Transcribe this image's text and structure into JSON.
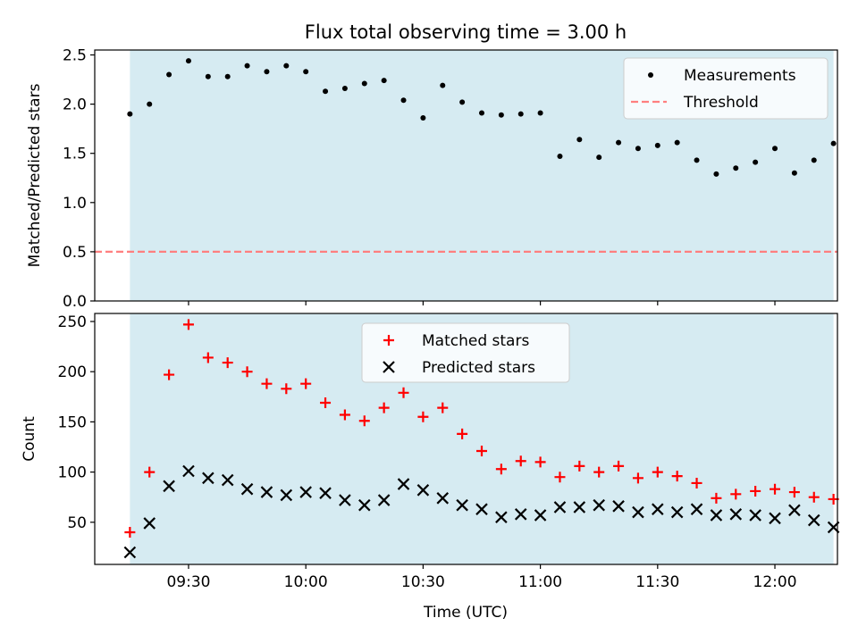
{
  "chart_data": {
    "type": "scatter",
    "title": "Flux total observing time = 3.00 h",
    "xlabel": "Time (UTC)",
    "x_tick_labels": [
      "09:30",
      "10:00",
      "10:30",
      "11:00",
      "11:30",
      "12:00"
    ],
    "x_ticks_minutes": [
      570,
      600,
      630,
      660,
      690,
      720
    ],
    "xlim_minutes": [
      546,
      736
    ],
    "shaded_span_minutes": [
      555,
      735
    ],
    "shade_color": "#add8e6",
    "times_minutes": [
      555,
      560,
      565,
      570,
      575,
      580,
      585,
      590,
      595,
      600,
      605,
      610,
      615,
      620,
      625,
      630,
      635,
      640,
      645,
      650,
      655,
      660,
      665,
      670,
      675,
      680,
      685,
      690,
      695,
      700,
      705,
      710,
      715,
      720,
      725,
      730,
      735
    ],
    "panels": [
      {
        "ylabel": "Matched/Predicted stars",
        "ylim": [
          0,
          2.55
        ],
        "yticks": [
          0.0,
          0.5,
          1.0,
          1.5,
          2.0,
          2.5
        ],
        "ytick_labels": [
          "0.0",
          "0.5",
          "1.0",
          "1.5",
          "2.0",
          "2.5"
        ],
        "legend_position": "upper right",
        "threshold": {
          "name": "Threshold",
          "value": 0.5,
          "color": "#ff7f7f",
          "style": "dashed"
        },
        "series": [
          {
            "name": "Measurements",
            "marker": "dot",
            "color": "#000000",
            "values": [
              1.9,
              2.0,
              2.3,
              2.44,
              2.28,
              2.28,
              2.39,
              2.33,
              2.39,
              2.33,
              2.13,
              2.16,
              2.21,
              2.24,
              2.04,
              1.86,
              2.19,
              2.02,
              1.91,
              1.89,
              1.9,
              1.91,
              1.47,
              1.64,
              1.46,
              1.61,
              1.55,
              1.58,
              1.61,
              1.43,
              1.29,
              1.35,
              1.41,
              1.55,
              1.3,
              1.43,
              1.6
            ]
          }
        ]
      },
      {
        "ylabel": "Count",
        "ylim": [
          8,
          258
        ],
        "yticks": [
          50,
          100,
          150,
          200,
          250
        ],
        "ytick_labels": [
          "50",
          "100",
          "150",
          "200",
          "250"
        ],
        "legend_position": "upper center",
        "series": [
          {
            "name": "Matched stars",
            "marker": "plus",
            "color": "#ff0000",
            "values": [
              40,
              100,
              197,
              247,
              214,
              209,
              200,
              188,
              183,
              188,
              169,
              157,
              151,
              164,
              179,
              155,
              164,
              138,
              121,
              103,
              111,
              110,
              95,
              106,
              100,
              106,
              94,
              100,
              96,
              89,
              74,
              78,
              81,
              83,
              80,
              75,
              73
            ]
          },
          {
            "name": "Predicted stars",
            "marker": "x",
            "color": "#000000",
            "values": [
              20,
              49,
              86,
              101,
              94,
              92,
              83,
              80,
              77,
              80,
              79,
              72,
              67,
              72,
              88,
              82,
              74,
              67,
              63,
              55,
              58,
              57,
              65,
              65,
              67,
              66,
              60,
              63,
              60,
              63,
              57,
              58,
              57,
              54,
              62,
              52,
              45
            ]
          }
        ]
      }
    ]
  }
}
